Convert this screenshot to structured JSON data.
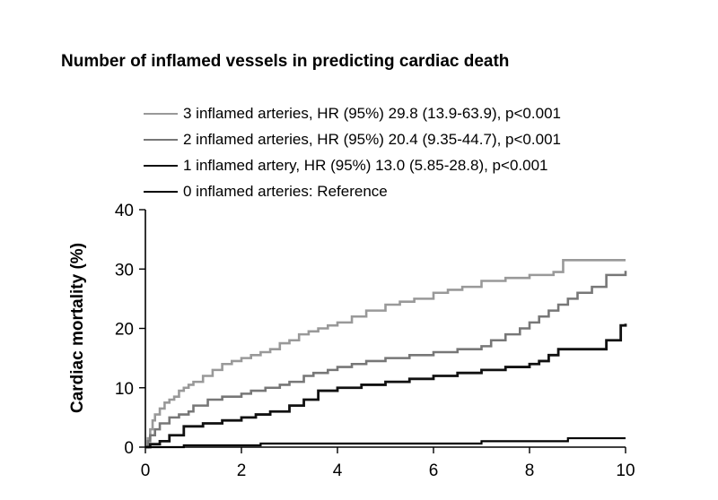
{
  "chart_data": {
    "type": "line",
    "step": true,
    "title": "Number of inflamed vessels in predicting cardiac death",
    "xlabel": "",
    "ylabel": "Cardiac mortality (%)",
    "xlim": [
      0,
      10
    ],
    "ylim": [
      0,
      40
    ],
    "xticks": [
      0,
      2,
      4,
      6,
      8,
      10
    ],
    "yticks": [
      0,
      10,
      20,
      30,
      40
    ],
    "grid": false,
    "legend_position": "top",
    "series": [
      {
        "name": "3 inflamed arteries, HR (95%) 29.8 (13.9-63.9), p<0.001",
        "color": "#999999",
        "x": [
          0,
          0.05,
          0.1,
          0.15,
          0.2,
          0.3,
          0.4,
          0.5,
          0.6,
          0.7,
          0.8,
          0.9,
          1.0,
          1.2,
          1.4,
          1.6,
          1.8,
          2.0,
          2.2,
          2.4,
          2.6,
          2.8,
          3.0,
          3.2,
          3.4,
          3.6,
          3.8,
          4.0,
          4.3,
          4.6,
          5.0,
          5.3,
          5.6,
          6.0,
          6.3,
          6.6,
          7.0,
          7.5,
          8.0,
          8.5,
          8.7,
          9.0,
          9.5,
          10.0
        ],
        "y": [
          0,
          1.5,
          3.0,
          4.5,
          5.5,
          6.5,
          7.5,
          8.0,
          8.5,
          9.5,
          10.0,
          10.5,
          11.0,
          12.0,
          13.0,
          14.0,
          14.5,
          15.0,
          15.5,
          16.0,
          16.5,
          17.5,
          18.0,
          19.0,
          19.5,
          20.0,
          20.5,
          21.0,
          22.0,
          23.0,
          24.0,
          24.5,
          25.0,
          26.0,
          26.5,
          27.0,
          28.0,
          28.5,
          29.0,
          29.5,
          31.5,
          31.5,
          31.5,
          31.5
        ]
      },
      {
        "name": "2 inflamed arteries, HR (95%) 20.4 (9.35-44.7), p<0.001",
        "color": "#777777",
        "x": [
          0,
          0.05,
          0.1,
          0.2,
          0.3,
          0.5,
          0.7,
          0.9,
          1.0,
          1.3,
          1.6,
          2.0,
          2.2,
          2.5,
          2.8,
          3.0,
          3.3,
          3.5,
          3.8,
          4.0,
          4.3,
          4.6,
          5.0,
          5.5,
          6.0,
          6.5,
          7.0,
          7.2,
          7.5,
          7.8,
          8.0,
          8.2,
          8.4,
          8.6,
          8.8,
          9.0,
          9.3,
          9.6,
          10.0
        ],
        "y": [
          0,
          1.0,
          2.0,
          3.0,
          4.0,
          5.0,
          5.5,
          6.0,
          7.0,
          8.0,
          8.5,
          9.0,
          9.5,
          10.0,
          10.5,
          11.0,
          12.0,
          12.5,
          13.0,
          13.5,
          14.0,
          14.5,
          15.0,
          15.5,
          16.0,
          16.5,
          17.0,
          18.0,
          19.0,
          20.0,
          21.0,
          22.0,
          23.0,
          24.0,
          25.0,
          26.0,
          27.0,
          29.0,
          29.7
        ]
      },
      {
        "name": "1 inflamed artery, HR (95%) 13.0 (5.85-28.8), p<0.001",
        "color": "#111111",
        "x": [
          0,
          0.1,
          0.3,
          0.5,
          0.8,
          1.2,
          1.6,
          2.0,
          2.3,
          2.6,
          3.0,
          3.3,
          3.6,
          4.0,
          4.5,
          5.0,
          5.5,
          6.0,
          6.5,
          7.0,
          7.5,
          8.0,
          8.2,
          8.4,
          8.6,
          9.0,
          9.6,
          9.9,
          10.0
        ],
        "y": [
          0,
          0.5,
          1.0,
          2.0,
          3.5,
          4.0,
          4.5,
          5.0,
          5.5,
          6.0,
          7.0,
          8.0,
          9.5,
          10.0,
          10.5,
          11.0,
          11.5,
          12.0,
          12.5,
          13.0,
          13.5,
          14.0,
          14.5,
          15.5,
          16.5,
          16.5,
          18.0,
          20.5,
          20.8
        ]
      },
      {
        "name": "0 inflamed arteries: Reference",
        "color": "#000000",
        "x": [
          0,
          0.8,
          2.4,
          7.0,
          8.8,
          10.0
        ],
        "y": [
          0,
          0.3,
          0.6,
          1.0,
          1.5,
          1.5
        ]
      }
    ]
  }
}
